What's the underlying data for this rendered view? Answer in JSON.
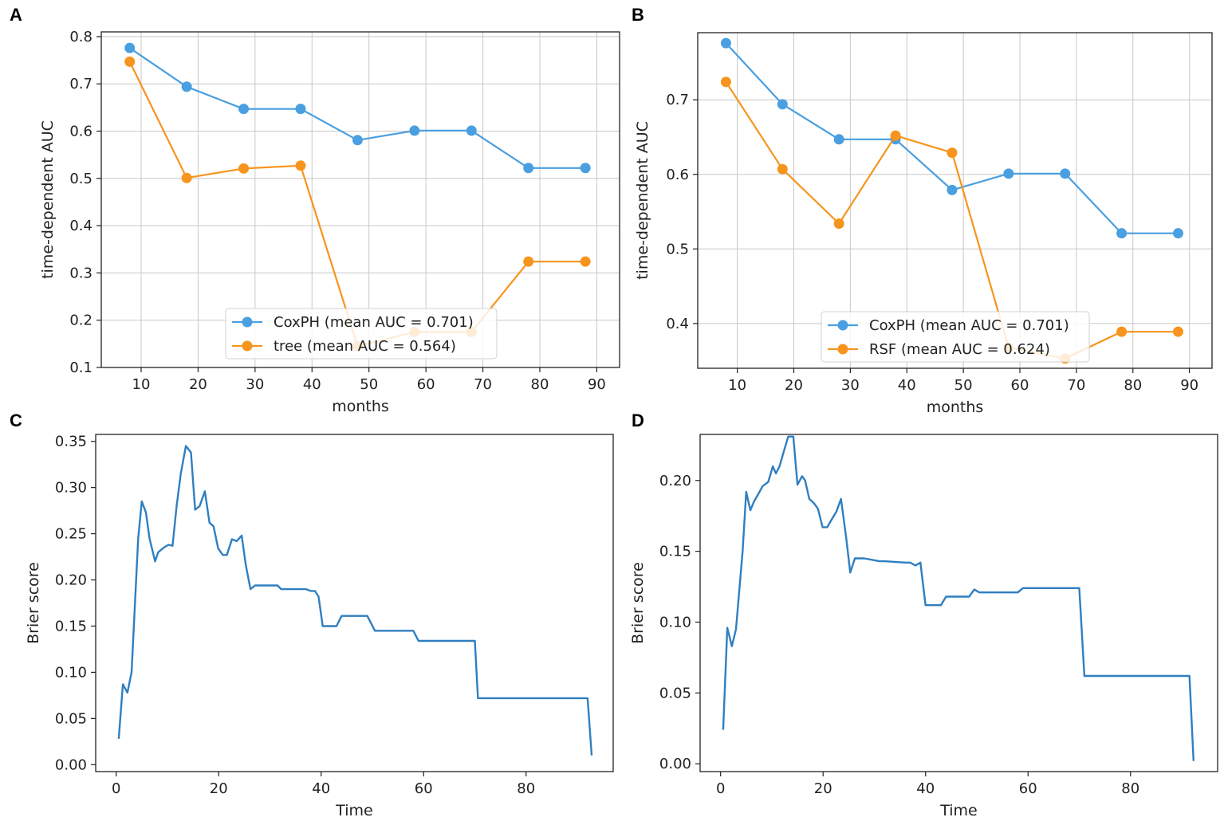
{
  "chart_data": [
    {
      "id": "A",
      "panel_label": "A",
      "type": "line",
      "xlabel": "months",
      "ylabel": "time-dependent AUC",
      "xlim": [
        3,
        94
      ],
      "ylim": [
        0.1,
        0.81
      ],
      "xticks": [
        10,
        20,
        30,
        40,
        50,
        60,
        70,
        80,
        90
      ],
      "yticks": [
        0.1,
        0.2,
        0.3,
        0.4,
        0.5,
        0.6,
        0.7,
        0.8
      ],
      "ytick_labels": [
        "0.1",
        "0.2",
        "0.3",
        "0.4",
        "0.5",
        "0.6",
        "0.7",
        "0.8"
      ],
      "grid": true,
      "markers": true,
      "legend": {
        "placement": "lower-center"
      },
      "x": [
        8,
        18,
        28,
        38,
        48,
        58,
        68,
        78,
        88
      ],
      "series": [
        {
          "name": "CoxPH (mean AUC = 0.701)",
          "color": "#4a9fe0",
          "values": [
            0.776,
            0.694,
            0.647,
            0.647,
            0.581,
            0.601,
            0.601,
            0.522,
            0.522
          ]
        },
        {
          "name": "tree (mean AUC = 0.564)",
          "color": "#f7941d",
          "values": [
            0.747,
            0.501,
            0.521,
            0.527,
            0.145,
            0.175,
            0.175,
            0.324,
            0.324
          ]
        }
      ]
    },
    {
      "id": "B",
      "panel_label": "B",
      "type": "line",
      "xlabel": "months",
      "ylabel": "time-dependent AUC",
      "xlim": [
        3,
        94
      ],
      "ylim": [
        0.34,
        0.79
      ],
      "xticks": [
        10,
        20,
        30,
        40,
        50,
        60,
        70,
        80,
        90
      ],
      "yticks": [
        0.4,
        0.5,
        0.6,
        0.7
      ],
      "ytick_labels": [
        "0.4",
        "0.5",
        "0.6",
        "0.7"
      ],
      "grid": true,
      "markers": true,
      "legend": {
        "placement": "lower-center"
      },
      "x": [
        8,
        18,
        28,
        38,
        48,
        58,
        68,
        78,
        88
      ],
      "series": [
        {
          "name": "CoxPH (mean AUC = 0.701)",
          "color": "#4a9fe0",
          "values": [
            0.776,
            0.694,
            0.647,
            0.647,
            0.579,
            0.601,
            0.601,
            0.521,
            0.521
          ]
        },
        {
          "name": "RSF (mean AUC = 0.624)",
          "color": "#f7941d",
          "values": [
            0.724,
            0.607,
            0.534,
            0.652,
            0.629,
            0.368,
            0.353,
            0.389,
            0.389
          ]
        }
      ]
    },
    {
      "id": "C",
      "panel_label": "C",
      "type": "line",
      "xlabel": "Time",
      "ylabel": "Brier score",
      "xlim": [
        -4,
        97
      ],
      "ylim": [
        -0.0075,
        0.3575
      ],
      "xticks": [
        0,
        20,
        40,
        60,
        80
      ],
      "yticks": [
        0.0,
        0.05,
        0.1,
        0.15,
        0.2,
        0.25,
        0.3,
        0.35
      ],
      "ytick_labels": [
        "0.00",
        "0.05",
        "0.10",
        "0.15",
        "0.20",
        "0.25",
        "0.30",
        "0.35"
      ],
      "grid": false,
      "markers": false,
      "series": [
        {
          "name": "Brier score",
          "color": "#2f7fc1",
          "x": [
            0.5,
            1.3,
            2.2,
            3.0,
            4.3,
            5.0,
            5.8,
            6.5,
            7.6,
            8.2,
            9.3,
            10.2,
            11.0,
            11.8,
            12.6,
            13.6,
            14.6,
            15.4,
            16.3,
            17.3,
            18.2,
            19.0,
            19.9,
            20.8,
            21.6,
            22.6,
            23.5,
            24.5,
            25.3,
            26.2,
            27.1,
            28.0,
            31.5,
            32.2,
            36.0,
            37.0,
            38.0,
            38.8,
            39.5,
            40.3,
            43.0,
            44.0,
            49.0,
            50.5,
            58.0,
            59.0,
            70.0,
            70.6,
            92.0,
            92.8
          ],
          "values": [
            0.028,
            0.087,
            0.078,
            0.1,
            0.245,
            0.285,
            0.273,
            0.245,
            0.22,
            0.23,
            0.235,
            0.238,
            0.237,
            0.28,
            0.315,
            0.345,
            0.338,
            0.276,
            0.28,
            0.296,
            0.262,
            0.258,
            0.234,
            0.227,
            0.227,
            0.244,
            0.242,
            0.248,
            0.216,
            0.19,
            0.194,
            0.194,
            0.194,
            0.19,
            0.19,
            0.19,
            0.188,
            0.188,
            0.182,
            0.15,
            0.15,
            0.161,
            0.161,
            0.145,
            0.145,
            0.134,
            0.134,
            0.072,
            0.072,
            0.01
          ]
        }
      ]
    },
    {
      "id": "D",
      "panel_label": "D",
      "type": "line",
      "xlabel": "Time",
      "ylabel": "Brier score",
      "xlim": [
        -4,
        97
      ],
      "ylim": [
        -0.0055,
        0.2325
      ],
      "xticks": [
        0,
        20,
        40,
        60,
        80
      ],
      "yticks": [
        0.0,
        0.05,
        0.1,
        0.15,
        0.2
      ],
      "ytick_labels": [
        "0.00",
        "0.05",
        "0.10",
        "0.15",
        "0.20"
      ],
      "grid": false,
      "markers": false,
      "series": [
        {
          "name": "Brier score",
          "color": "#2f7fc1",
          "x": [
            0.5,
            1.3,
            2.2,
            3.0,
            4.3,
            5.0,
            5.8,
            6.5,
            7.6,
            8.2,
            9.3,
            10.2,
            10.8,
            11.5,
            12.3,
            13.2,
            14.2,
            15.0,
            15.9,
            16.5,
            17.3,
            18.2,
            19.0,
            19.9,
            20.8,
            21.6,
            22.6,
            23.5,
            24.5,
            25.3,
            26.2,
            27.1,
            28.0,
            31.0,
            32.0,
            36.0,
            37.0,
            38.0,
            39.0,
            40.0,
            43.0,
            44.0,
            48.5,
            49.5,
            50.5,
            58.0,
            59.0,
            70.0,
            71.0,
            91.5,
            92.3
          ],
          "values": [
            0.024,
            0.096,
            0.083,
            0.095,
            0.15,
            0.192,
            0.179,
            0.185,
            0.192,
            0.196,
            0.199,
            0.21,
            0.205,
            0.21,
            0.22,
            0.231,
            0.231,
            0.197,
            0.203,
            0.2,
            0.187,
            0.184,
            0.18,
            0.167,
            0.167,
            0.172,
            0.178,
            0.187,
            0.16,
            0.135,
            0.145,
            0.145,
            0.145,
            0.143,
            0.143,
            0.142,
            0.142,
            0.14,
            0.142,
            0.112,
            0.112,
            0.118,
            0.118,
            0.123,
            0.121,
            0.121,
            0.124,
            0.124,
            0.062,
            0.062,
            0.002
          ]
        }
      ]
    }
  ]
}
